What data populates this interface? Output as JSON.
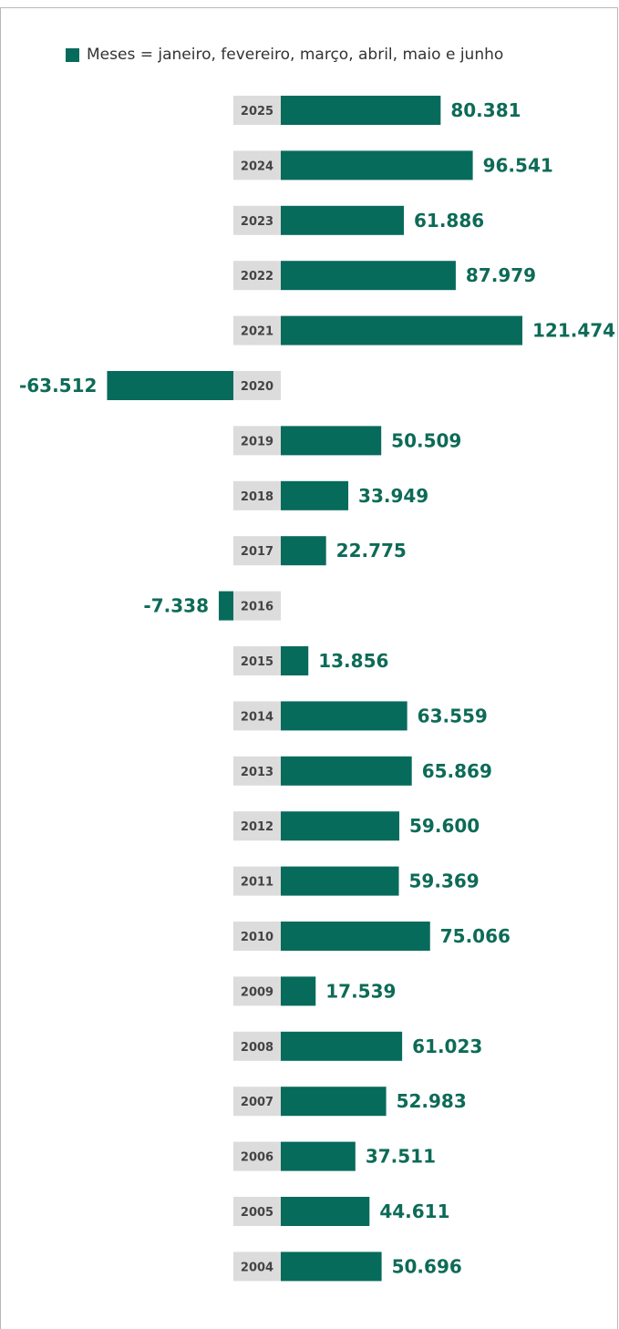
{
  "colors": {
    "bar": "#076b5c",
    "value_text": "#0d6b57",
    "year_box": "#dcdcdc",
    "frame": "#b8b8b8"
  },
  "legend": {
    "label": "Meses = janeiro, fevereiro, março, abril, maio e junho"
  },
  "chart_data": {
    "type": "bar",
    "orientation": "horizontal",
    "categories": [
      "2025",
      "2024",
      "2023",
      "2022",
      "2021",
      "2020",
      "2019",
      "2018",
      "2017",
      "2016",
      "2015",
      "2014",
      "2013",
      "2012",
      "2011",
      "2010",
      "2009",
      "2008",
      "2007",
      "2006",
      "2005",
      "2004"
    ],
    "series": [
      {
        "name": "Meses = janeiro, fevereiro, março, abril, maio e junho",
        "values": [
          80381,
          96541,
          61886,
          87979,
          121474,
          -63512,
          50509,
          33949,
          22775,
          -7338,
          13856,
          63559,
          65869,
          59600,
          59369,
          75066,
          17539,
          61023,
          52983,
          37511,
          44611,
          50696
        ]
      }
    ],
    "data_labels": [
      "80.381",
      "96.541",
      "61.886",
      "87.979",
      "121.474",
      "-63.512",
      "50.509",
      "33.949",
      "22.775",
      "-7.338",
      "13.856",
      "63.559",
      "65.869",
      "59.600",
      "59.369",
      "75.066",
      "17.539",
      "61.023",
      "52.983",
      "37.511",
      "44.611",
      "50.696"
    ],
    "legend_position": "top",
    "grid": false
  }
}
